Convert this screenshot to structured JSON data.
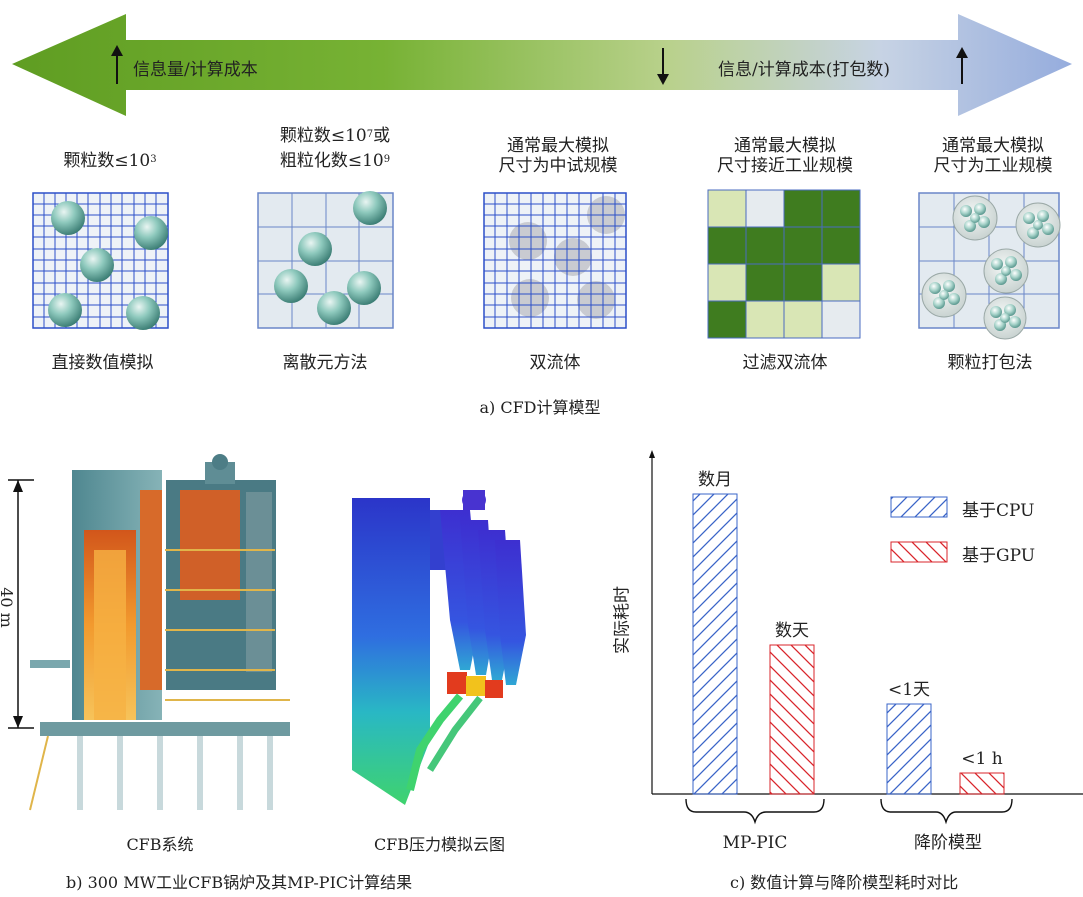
{
  "arrow": {
    "left_label": "信息量/计算成本",
    "right_label": "信息/计算成本(打包数)"
  },
  "panel_a": {
    "caption": "a) CFD计算模型",
    "models": [
      {
        "top_lines": [
          "颗粒数≤10",
          "3"
        ],
        "bottom": "直接数值模拟"
      },
      {
        "top_line1_pre": "颗粒数≤10",
        "top_line1_sup": "7",
        "top_line1_post": "或",
        "top_line2_pre": "粗粒化数≤10",
        "top_line2_sup": "9",
        "bottom": "离散元方法"
      },
      {
        "top_line1": "通常最大模拟",
        "top_line2": "尺寸为中试规模",
        "bottom": "双流体"
      },
      {
        "top_line1": "通常最大模拟",
        "top_line2": "尺寸接近工业规模",
        "bottom": "过滤双流体"
      },
      {
        "top_line1": "通常最大模拟",
        "top_line2": "尺寸为工业规模",
        "bottom": "颗粒打包法"
      }
    ]
  },
  "panel_b": {
    "height_label": "40 m",
    "left_caption": "CFB系统",
    "right_caption": "CFB压力模拟云图",
    "caption": "b) 300 MW工业CFB锅炉及其MP-PIC计算结果"
  },
  "panel_c": {
    "caption": "c) 数值计算与降阶模型耗时对比",
    "chart_data": {
      "type": "bar",
      "ylabel": "实际耗时",
      "groups": [
        "MP-PIC",
        "降阶模型"
      ],
      "series": [
        {
          "name": "基于CPU",
          "color": "#3a64c8",
          "labels": [
            "数月",
            "<1天"
          ]
        },
        {
          "name": "基于GPU",
          "color": "#d9252b",
          "labels": [
            "数天",
            "<1 h"
          ]
        }
      ],
      "bars": [
        {
          "group": "MP-PIC",
          "series": "基于CPU",
          "label": "数月",
          "rel_height": 1.0
        },
        {
          "group": "MP-PIC",
          "series": "基于GPU",
          "label": "数天",
          "rel_height": 0.5
        },
        {
          "group": "降阶模型",
          "series": "基于CPU",
          "label": "<1天",
          "rel_height": 0.3
        },
        {
          "group": "降阶模型",
          "series": "基于GPU",
          "label": "<1 h",
          "rel_height": 0.07
        }
      ]
    }
  },
  "colors": {
    "arrow_green": "#6aab2a",
    "arrow_blue": "#9fb4e0",
    "grid_blue": "#2c4fc8",
    "cell_light": "#dfe8ee",
    "filter_dark": "#3f7c1f",
    "filter_light": "#d9e6b5"
  }
}
